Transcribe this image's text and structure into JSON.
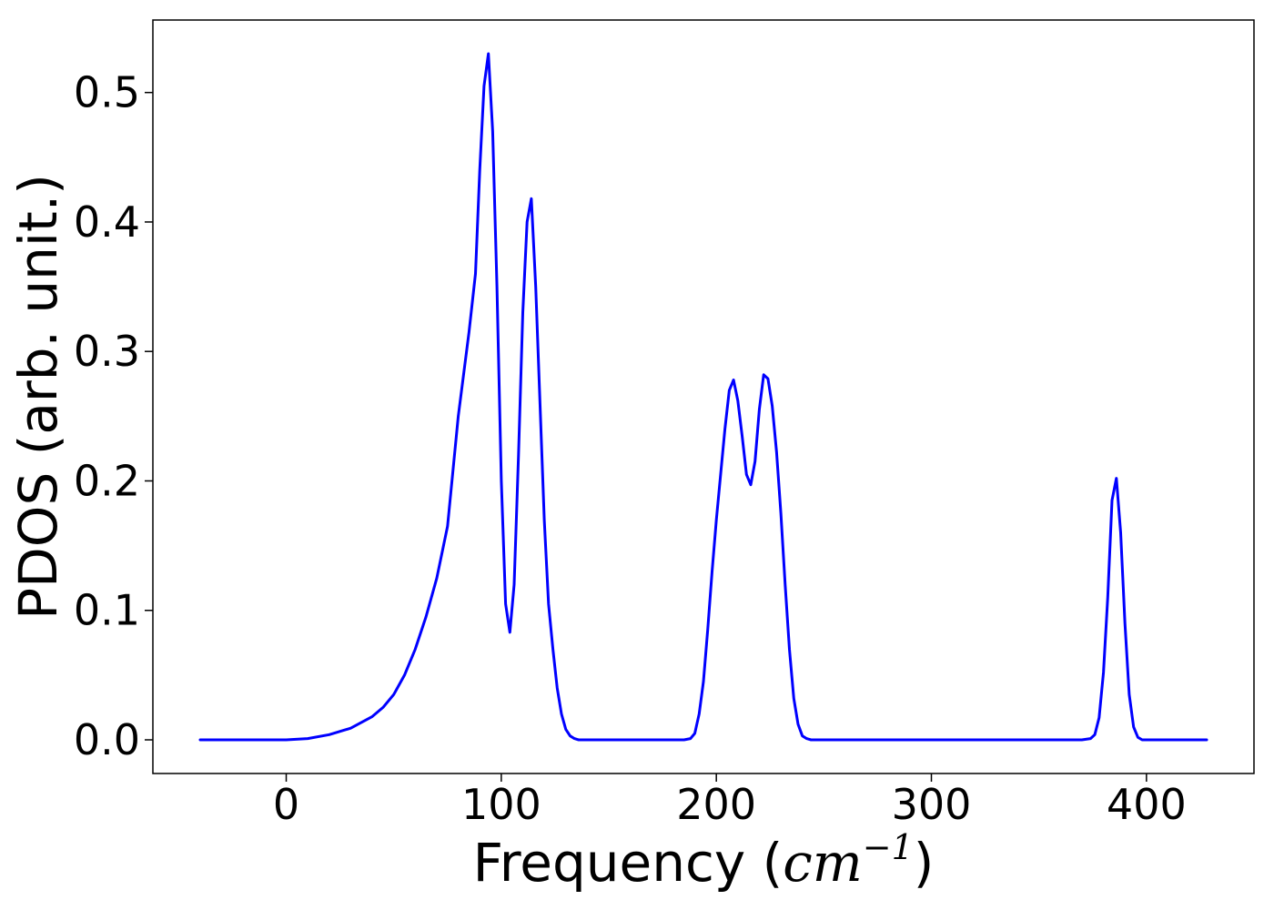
{
  "chart_data": {
    "type": "line",
    "title": "",
    "xlabel": "Frequency",
    "xlabel_unit_base": "cm",
    "xlabel_unit_exponent": "−1",
    "ylabel": "PDOS (arb. unit.)",
    "xlim": [
      -62,
      450
    ],
    "ylim": [
      -0.026,
      0.556
    ],
    "xticks": [
      0,
      100,
      200,
      300,
      400
    ],
    "xtick_labels": [
      "0",
      "100",
      "200",
      "300",
      "400"
    ],
    "yticks": [
      0.0,
      0.1,
      0.2,
      0.3,
      0.4,
      0.5
    ],
    "ytick_labels": [
      "0.0",
      "0.1",
      "0.2",
      "0.3",
      "0.4",
      "0.5"
    ],
    "grid": false,
    "series": [
      {
        "color": "#0000ff",
        "x": [
          -40,
          -20,
          0,
          10,
          20,
          30,
          40,
          45,
          50,
          55,
          60,
          65,
          70,
          75,
          80,
          85,
          88,
          90,
          92,
          94,
          96,
          98,
          100,
          102,
          104,
          106,
          108,
          110,
          112,
          114,
          116,
          118,
          120,
          122,
          124,
          126,
          128,
          130,
          132,
          134,
          136,
          138,
          140,
          145,
          150,
          160,
          170,
          180,
          185,
          188,
          190,
          192,
          194,
          196,
          198,
          200,
          202,
          204,
          206,
          208,
          210,
          212,
          214,
          216,
          218,
          220,
          222,
          224,
          226,
          228,
          230,
          232,
          234,
          236,
          238,
          240,
          242,
          244,
          246,
          248,
          250,
          252,
          255,
          260,
          280,
          300,
          320,
          340,
          360,
          370,
          374,
          376,
          378,
          380,
          382,
          384,
          386,
          388,
          390,
          392,
          394,
          396,
          398,
          400,
          402,
          405,
          410,
          420,
          428
        ],
        "y": [
          0.0,
          0.0,
          0.0,
          0.001,
          0.004,
          0.009,
          0.018,
          0.025,
          0.035,
          0.05,
          0.07,
          0.095,
          0.125,
          0.165,
          0.25,
          0.315,
          0.36,
          0.44,
          0.505,
          0.53,
          0.47,
          0.35,
          0.2,
          0.105,
          0.083,
          0.12,
          0.22,
          0.33,
          0.4,
          0.418,
          0.35,
          0.26,
          0.17,
          0.105,
          0.07,
          0.04,
          0.02,
          0.008,
          0.003,
          0.001,
          0.0,
          0.0,
          0.0,
          0.0,
          0.0,
          0.0,
          0.0,
          0.0,
          0.0,
          0.001,
          0.005,
          0.02,
          0.045,
          0.085,
          0.13,
          0.17,
          0.205,
          0.24,
          0.27,
          0.278,
          0.262,
          0.235,
          0.205,
          0.197,
          0.215,
          0.255,
          0.282,
          0.279,
          0.258,
          0.222,
          0.175,
          0.12,
          0.07,
          0.032,
          0.012,
          0.003,
          0.001,
          0.0,
          0.0,
          0.0,
          0.0,
          0.0,
          0.0,
          0.0,
          0.0,
          0.0,
          0.0,
          0.0,
          0.0,
          0.0,
          0.001,
          0.004,
          0.017,
          0.052,
          0.11,
          0.185,
          0.202,
          0.16,
          0.09,
          0.035,
          0.01,
          0.002,
          0.0,
          0.0,
          0.0,
          0.0,
          0.0,
          0.0,
          0.0
        ]
      }
    ]
  }
}
